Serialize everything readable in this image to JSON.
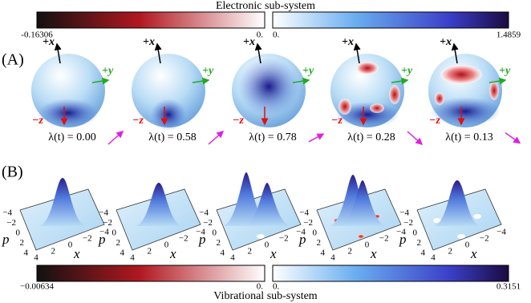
{
  "top_colorbar": {
    "title": "Electronic sub-system",
    "min_label": "-0.16306",
    "zero_left": "0.",
    "zero_right": "0.",
    "max_label": "1.4859"
  },
  "panel_a": {
    "label": "(A)",
    "axis_labels": {
      "x": "+x",
      "y": "+y",
      "z": "−z"
    },
    "spheres": [
      {
        "lambda": "λ(t) = 0.00"
      },
      {
        "lambda": "λ(t) = 0.58"
      },
      {
        "lambda": "λ(t) = 0.78"
      },
      {
        "lambda": "λ(t) = 0.28"
      },
      {
        "lambda": "λ(t) = 0.13"
      }
    ]
  },
  "panel_b": {
    "label": "(B)",
    "axis_labels": {
      "p": "p",
      "x": "x"
    },
    "ticks": [
      "−4",
      "−2",
      "0",
      "2",
      "4"
    ],
    "plot_count_labels": []
  },
  "bottom_colorbar": {
    "title": "Vibrational sub-system",
    "min_label": "−0.00634",
    "zero_left": "0.",
    "zero_right": "0.",
    "max_label": "0.3151"
  }
}
